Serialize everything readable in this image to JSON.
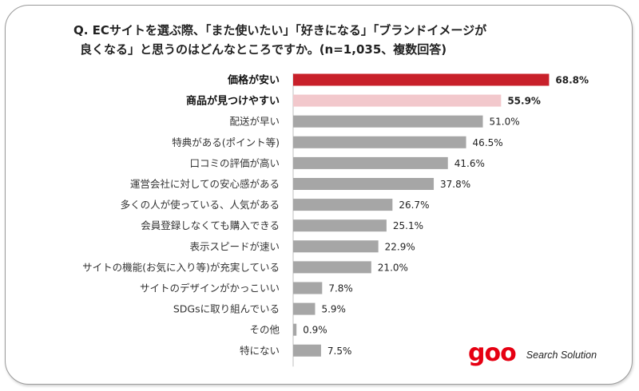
{
  "title": {
    "line1": "Q. ECサイトを選ぶ際、「また使いたい」「好きになる」「ブランドイメージが",
    "line2": "良くなる」と思うのはどんなところですか。(n=1,035、複数回答)"
  },
  "brand": {
    "logo": "goo",
    "sub": "Search Solution"
  },
  "colors": {
    "top1": "#c8202a",
    "top2": "#f2c8cc",
    "default": "#a6a6a6"
  },
  "chart_data": {
    "type": "bar",
    "orientation": "horizontal",
    "title": "Q. ECサイトを選ぶ際、「また使いたい」「好きになる」「ブランドイメージが良くなる」と思うのはどんなところですか。(n=1,035、複数回答)",
    "xlim": [
      0,
      70
    ],
    "unit": "%",
    "categories": [
      "価格が安い",
      "商品が見つけやすい",
      "配送が早い",
      "特典がある(ポイント等)",
      "口コミの評価が高い",
      "運営会社に対しての安心感がある",
      "多くの人が使っている、人気がある",
      "会員登録しなくても購入できる",
      "表示スピードが速い",
      "サイトの機能(お気に入り等)が充実している",
      "サイトのデザインがかっこいい",
      "SDGsに取り組んでいる",
      "その他",
      "特にない"
    ],
    "values": [
      68.8,
      55.9,
      51.0,
      46.5,
      41.6,
      37.8,
      26.7,
      25.1,
      22.9,
      21.0,
      7.8,
      5.9,
      0.9,
      7.5
    ],
    "labels": [
      "68.8%",
      "55.9%",
      "51.0%",
      "46.5%",
      "41.6%",
      "37.8%",
      "26.7%",
      "25.1%",
      "22.9%",
      "21.0%",
      "7.8%",
      "5.9%",
      "0.9%",
      "7.5%"
    ],
    "highlight": [
      {
        "index": 0,
        "color": "#c8202a",
        "bold": true
      },
      {
        "index": 1,
        "color": "#f2c8cc",
        "bold": true
      }
    ]
  }
}
